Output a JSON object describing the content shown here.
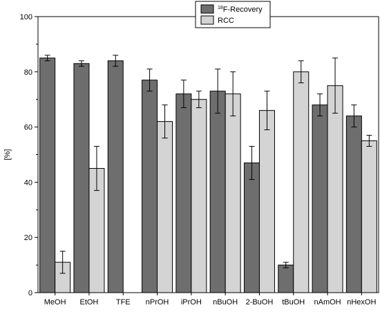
{
  "chart_data": {
    "type": "bar",
    "title": "",
    "xlabel": "",
    "ylabel": "[%]",
    "ylim": [
      0,
      100
    ],
    "yticks": [
      0,
      20,
      40,
      60,
      80,
      100
    ],
    "grid": false,
    "legend_position": "top-right",
    "categories": [
      "MeOH",
      "EtOH",
      "TFE",
      "nPrOH",
      "iPrOH",
      "nBuOH",
      "2-BuOH",
      "tBuOH",
      "nAmOH",
      "nHexOH"
    ],
    "series": [
      {
        "name_sup": "18",
        "name": "F-Recovery",
        "color": "#6e6e6e",
        "values": [
          85,
          83,
          84,
          77,
          72,
          73,
          47,
          10,
          68,
          64
        ],
        "errors": [
          1,
          1,
          2,
          4,
          5,
          8,
          6,
          1,
          4,
          4
        ]
      },
      {
        "name": "RCC",
        "color": "#d4d4d4",
        "values": [
          11,
          45,
          null,
          62,
          70,
          72,
          66,
          80,
          75,
          55
        ],
        "errors": [
          4,
          8,
          null,
          6,
          3,
          8,
          7,
          4,
          10,
          2
        ]
      }
    ]
  }
}
